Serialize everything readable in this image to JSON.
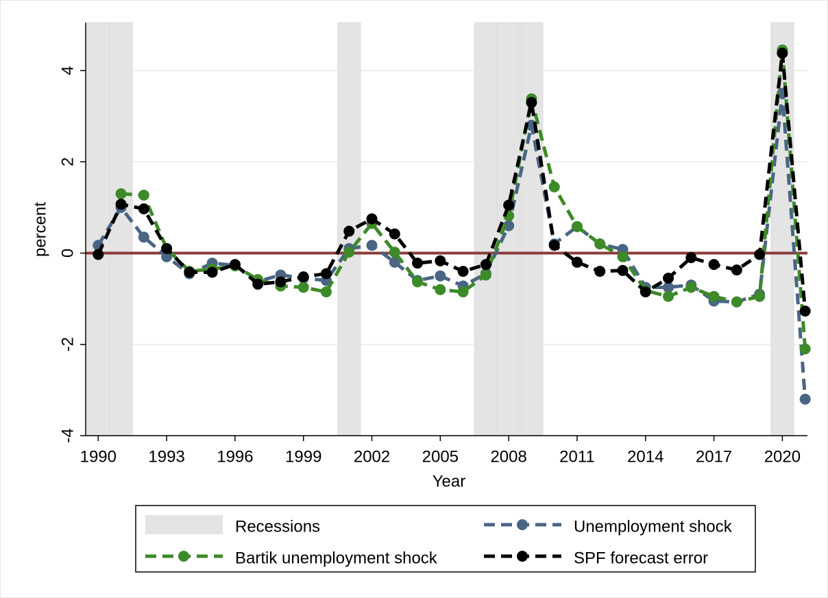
{
  "chart_data": {
    "type": "line",
    "xlabel": "Year",
    "ylabel": "percent",
    "x": [
      1990,
      1991,
      1992,
      1993,
      1994,
      1995,
      1996,
      1997,
      1998,
      1999,
      2000,
      2001,
      2002,
      2003,
      2004,
      2005,
      2006,
      2007,
      2008,
      2009,
      2010,
      2011,
      2012,
      2013,
      2014,
      2015,
      2016,
      2017,
      2018,
      2019,
      2020,
      2021
    ],
    "xlim": [
      1989.45,
      2021.1
    ],
    "xticks": [
      1990,
      1993,
      1996,
      1999,
      2002,
      2005,
      2008,
      2011,
      2014,
      2017,
      2020
    ],
    "ylim": [
      -4,
      5.05
    ],
    "yticks": [
      -4,
      -2,
      0,
      2,
      4
    ],
    "grid": true,
    "hline": {
      "value": 0,
      "color": "#8b3a3a"
    },
    "recessions": {
      "name": "Recessions",
      "color": "#e4e4e4",
      "spans": [
        [
          1989.5,
          1990.5
        ],
        [
          1990.5,
          1991.5
        ],
        [
          2000.5,
          2001.5
        ],
        [
          2006.5,
          2007.5
        ],
        [
          2007.5,
          2008.5
        ],
        [
          2008.5,
          2009.5
        ],
        [
          2019.5,
          2020.5
        ]
      ]
    },
    "series": [
      {
        "name": "Unemployment shock",
        "color": "#4a6584",
        "values": [
          0.17,
          1.0,
          0.35,
          -0.08,
          -0.45,
          -0.22,
          -0.27,
          -0.62,
          -0.48,
          -0.55,
          -0.6,
          0.1,
          0.17,
          -0.2,
          -0.6,
          -0.5,
          -0.72,
          -0.45,
          0.6,
          2.8,
          0.2,
          0.58,
          0.2,
          0.08,
          -0.75,
          -0.75,
          -0.7,
          -1.05,
          -1.07,
          -0.9,
          3.5,
          -3.2
        ]
      },
      {
        "name": "Bartik unemployment shock",
        "color": "#3d8a28",
        "values": [
          null,
          1.3,
          1.27,
          0.1,
          -0.4,
          -0.35,
          -0.28,
          -0.58,
          -0.72,
          -0.75,
          -0.85,
          0.02,
          0.65,
          0.02,
          -0.63,
          -0.8,
          -0.85,
          -0.48,
          0.82,
          3.38,
          1.45,
          0.58,
          0.2,
          -0.08,
          -0.82,
          -0.95,
          -0.75,
          -0.95,
          -1.07,
          -0.95,
          4.45,
          -2.1
        ]
      },
      {
        "name": "SPF forecast error",
        "color": "#000000",
        "values": [
          -0.03,
          1.07,
          0.97,
          0.1,
          -0.42,
          -0.42,
          -0.25,
          -0.68,
          -0.63,
          -0.52,
          -0.45,
          0.48,
          0.75,
          0.42,
          -0.22,
          -0.17,
          -0.4,
          -0.25,
          1.05,
          3.3,
          0.17,
          -0.2,
          -0.4,
          -0.38,
          -0.85,
          -0.55,
          -0.1,
          -0.25,
          -0.37,
          -0.03,
          4.38,
          -1.27
        ]
      }
    ]
  }
}
